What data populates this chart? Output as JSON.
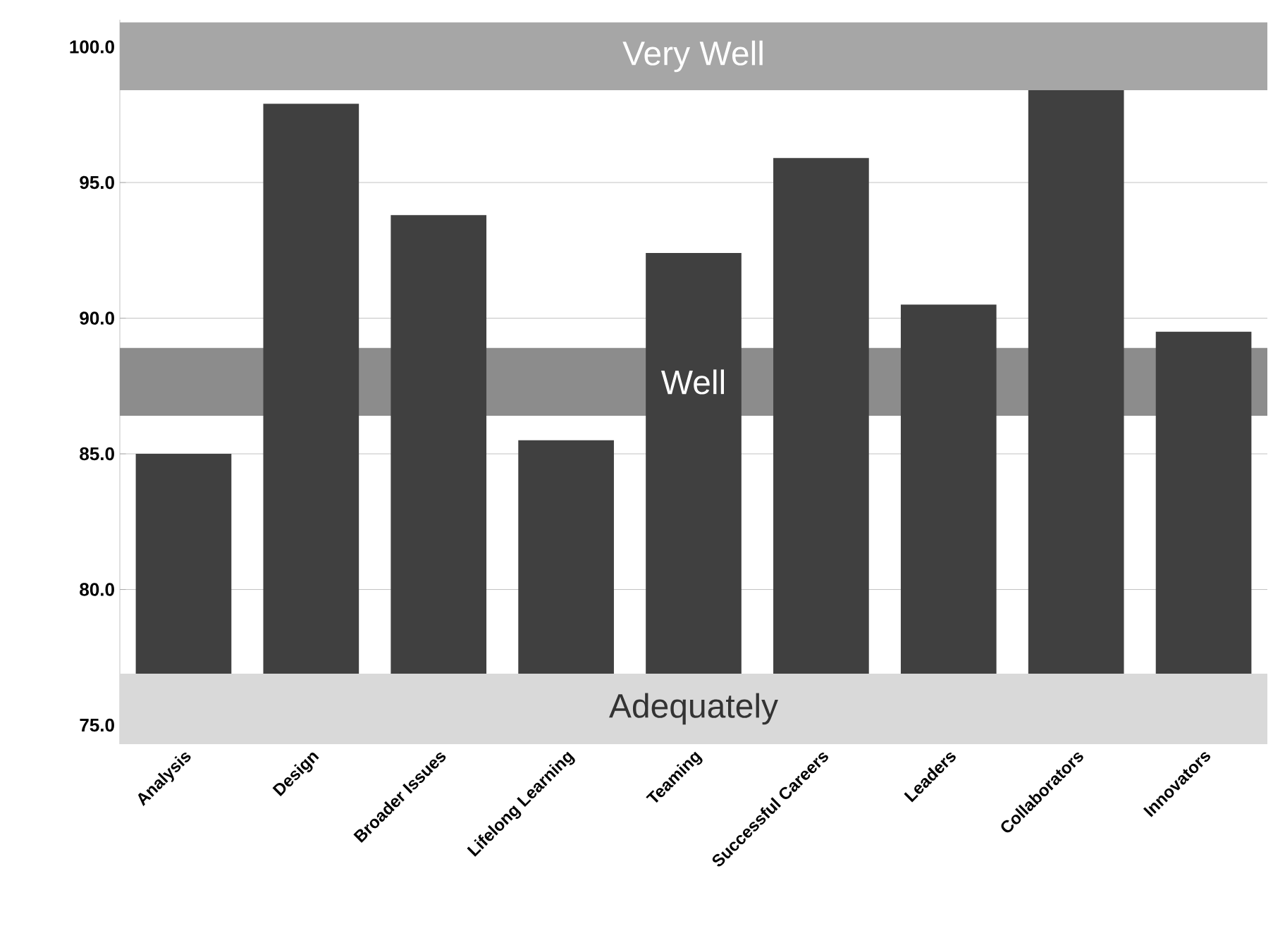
{
  "chart_data": {
    "type": "bar",
    "categories": [
      "Analysis",
      "Design",
      "Broader Issues",
      "Lifelong Learning",
      "Teaming",
      "Successful Careers",
      "Leaders",
      "Collaborators",
      "Innovators"
    ],
    "values": [
      85.0,
      97.9,
      93.8,
      85.5,
      92.4,
      95.9,
      90.5,
      98.4,
      89.5
    ],
    "color": "#404040",
    "ylim": [
      74.3,
      101
    ],
    "yticks": [
      {
        "value": 75,
        "label": "75.0"
      },
      {
        "value": 80,
        "label": "80.0"
      },
      {
        "value": 85,
        "label": "85.0"
      },
      {
        "value": 90,
        "label": "90.0"
      },
      {
        "value": 95,
        "label": "95.0"
      },
      {
        "value": 100,
        "label": "100.0"
      }
    ],
    "grid": "y",
    "bands": [
      {
        "axis": "y",
        "from": 98.4,
        "to": 100.9,
        "label": "Very Well",
        "color": "#a6a6a6"
      },
      {
        "axis": "y",
        "from": 86.4,
        "to": 88.9,
        "label": "Well",
        "color": "#8c8c8c"
      },
      {
        "axis": "y",
        "from": 74.3,
        "to": 76.9,
        "label": "Adequately",
        "color": "#d9d9d9"
      }
    ]
  }
}
